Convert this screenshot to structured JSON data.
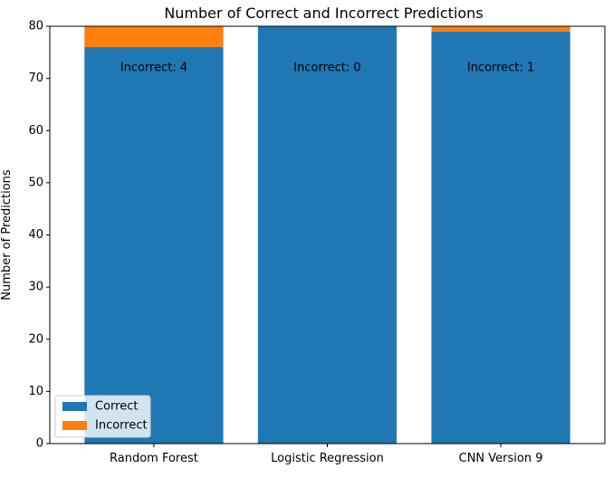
{
  "chart_data": {
    "type": "bar",
    "stacked": true,
    "title": "Number of Correct and Incorrect Predictions",
    "xlabel": "",
    "ylabel": "Number of Predictions",
    "categories": [
      "Random Forest",
      "Logistic Regression",
      "CNN Version 9"
    ],
    "series": [
      {
        "name": "Correct",
        "values": [
          76,
          80,
          79
        ],
        "color": "#1f77b4"
      },
      {
        "name": "Incorrect",
        "values": [
          4,
          0,
          1
        ],
        "color": "#ff7f0e"
      }
    ],
    "annotations": [
      "Incorrect: 4",
      "Incorrect: 0",
      "Incorrect: 1"
    ],
    "annotation_y": 72,
    "ylim": [
      0,
      80
    ],
    "yticks": [
      0,
      10,
      20,
      30,
      40,
      50,
      60,
      70,
      80
    ],
    "grid": false,
    "legend_position": "lower-left"
  }
}
